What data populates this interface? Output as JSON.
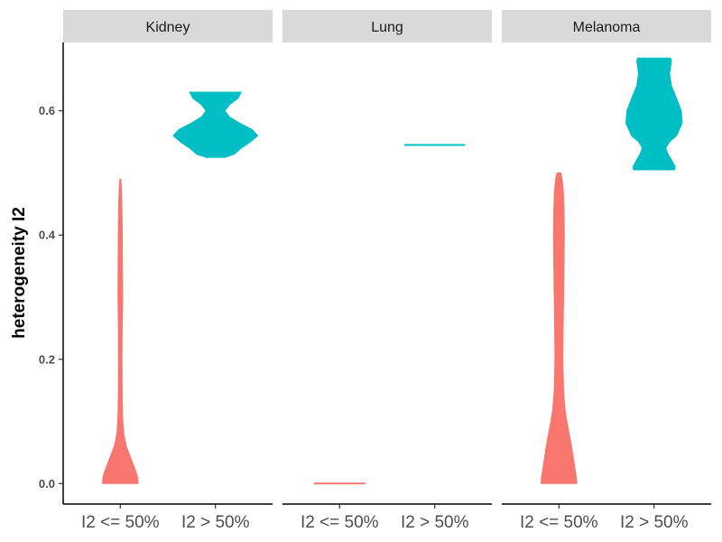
{
  "chart_data": {
    "type": "violin",
    "ylabel": "heterogeneity I2",
    "xlabel": "",
    "ylim": [
      -0.033,
      0.71
    ],
    "yticks": [
      0.0,
      0.2,
      0.4,
      0.6
    ],
    "ytick_labels": [
      "0.0",
      "0.2",
      "0.4",
      "0.6"
    ],
    "categories": [
      "I2 <= 50%",
      "I2 > 50%"
    ],
    "colors": {
      "I2 <= 50%": "#F8766D",
      "I2 > 50%": "#00BFC4"
    },
    "strip_color": "#d9d9d9",
    "grid": false,
    "legend": "none",
    "panels": [
      {
        "name": "Kidney",
        "violins": [
          {
            "group": "I2 <= 50%",
            "profile": [
              [
                0.0,
                0.38
              ],
              [
                0.01,
                0.37
              ],
              [
                0.02,
                0.33
              ],
              [
                0.03,
                0.28
              ],
              [
                0.04,
                0.23
              ],
              [
                0.05,
                0.18
              ],
              [
                0.06,
                0.13
              ],
              [
                0.07,
                0.1
              ],
              [
                0.08,
                0.075
              ],
              [
                0.1,
                0.055
              ],
              [
                0.12,
                0.045
              ],
              [
                0.15,
                0.04
              ],
              [
                0.2,
                0.038
              ],
              [
                0.25,
                0.04
              ],
              [
                0.3,
                0.05
              ],
              [
                0.35,
                0.045
              ],
              [
                0.4,
                0.042
              ],
              [
                0.45,
                0.035
              ],
              [
                0.48,
                0.02
              ],
              [
                0.49,
                0.01
              ]
            ]
          },
          {
            "group": "I2 > 50%",
            "profile": [
              [
                0.525,
                0.2
              ],
              [
                0.53,
                0.4
              ],
              [
                0.54,
                0.55
              ],
              [
                0.55,
                0.75
              ],
              [
                0.56,
                0.9
              ],
              [
                0.57,
                0.78
              ],
              [
                0.58,
                0.52
              ],
              [
                0.59,
                0.3
              ],
              [
                0.6,
                0.2
              ],
              [
                0.61,
                0.3
              ],
              [
                0.62,
                0.48
              ],
              [
                0.63,
                0.55
              ]
            ]
          }
        ]
      },
      {
        "name": "Lung",
        "violins": [
          {
            "group": "I2 <= 50%",
            "profile": [
              [
                0.0,
                0.55
              ]
            ]
          },
          {
            "group": "I2 > 50%",
            "profile": [
              [
                0.545,
                0.65
              ]
            ]
          }
        ]
      },
      {
        "name": "Melanoma",
        "violins": [
          {
            "group": "I2 <= 50%",
            "profile": [
              [
                0.0,
                0.38
              ],
              [
                0.01,
                0.37
              ],
              [
                0.02,
                0.35
              ],
              [
                0.04,
                0.31
              ],
              [
                0.06,
                0.27
              ],
              [
                0.08,
                0.22
              ],
              [
                0.1,
                0.17
              ],
              [
                0.12,
                0.13
              ],
              [
                0.15,
                0.1
              ],
              [
                0.2,
                0.085
              ],
              [
                0.25,
                0.09
              ],
              [
                0.3,
                0.1
              ],
              [
                0.35,
                0.11
              ],
              [
                0.4,
                0.115
              ],
              [
                0.44,
                0.11
              ],
              [
                0.47,
                0.095
              ],
              [
                0.49,
                0.07
              ],
              [
                0.5,
                0.04
              ]
            ]
          },
          {
            "group": "I2 > 50%",
            "profile": [
              [
                0.505,
                0.44
              ],
              [
                0.51,
                0.45
              ],
              [
                0.52,
                0.38
              ],
              [
                0.53,
                0.3
              ],
              [
                0.54,
                0.25
              ],
              [
                0.55,
                0.33
              ],
              [
                0.56,
                0.48
              ],
              [
                0.58,
                0.6
              ],
              [
                0.6,
                0.58
              ],
              [
                0.62,
                0.48
              ],
              [
                0.64,
                0.37
              ],
              [
                0.66,
                0.33
              ],
              [
                0.68,
                0.37
              ],
              [
                0.685,
                0.35
              ]
            ]
          }
        ]
      }
    ]
  }
}
